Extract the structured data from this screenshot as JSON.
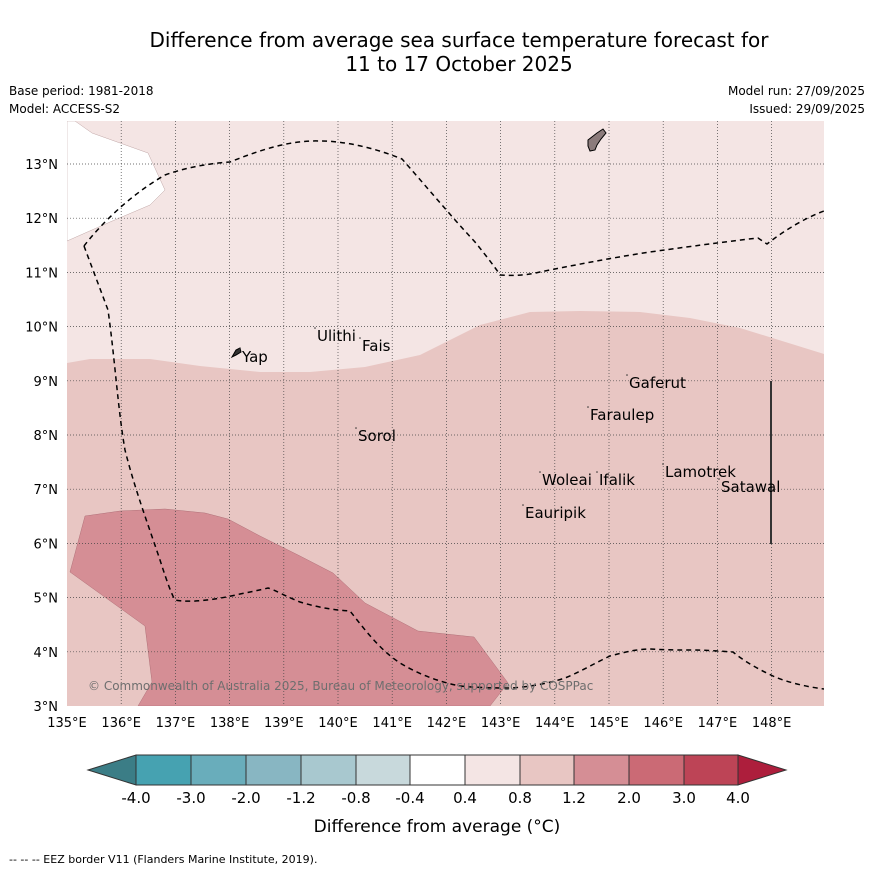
{
  "title": {
    "line1": "Difference from average sea surface temperature forecast for",
    "line2": "11 to 17 October 2025"
  },
  "meta": {
    "base_period": "Base period: 1981-2018",
    "model": "Model: ACCESS-S2",
    "model_run": "Model run: 27/09/2025",
    "issued": "Issued: 29/09/2025"
  },
  "axes": {
    "x_ticks": [
      "135°E",
      "136°E",
      "137°E",
      "138°E",
      "139°E",
      "140°E",
      "141°E",
      "142°E",
      "143°E",
      "144°E",
      "145°E",
      "146°E",
      "147°E",
      "148°E"
    ],
    "y_ticks": [
      "3°N",
      "4°N",
      "5°N",
      "6°N",
      "7°N",
      "8°N",
      "9°N",
      "10°N",
      "11°N",
      "12°N",
      "13°N"
    ]
  },
  "places": [
    {
      "name": "Yap"
    },
    {
      "name": "Ulithi"
    },
    {
      "name": "Fais"
    },
    {
      "name": "Sorol"
    },
    {
      "name": "Gaferut"
    },
    {
      "name": "Faraulep"
    },
    {
      "name": "Woleai"
    },
    {
      "name": "Ifalik"
    },
    {
      "name": "Lamotrek"
    },
    {
      "name": "Satawal"
    },
    {
      "name": "Eauripik"
    }
  ],
  "copyright": "© Commonwealth of Australia 2025, Bureau of Meteorology, supported by COSPPac",
  "colorbar": {
    "labels": [
      "-4.0",
      "-3.0",
      "-2.0",
      "-1.2",
      "-0.8",
      "-0.4",
      "0.4",
      "0.8",
      "1.2",
      "2.0",
      "3.0",
      "4.0"
    ],
    "colors": [
      "#3b7d86",
      "#46a2b1",
      "#69adbb",
      "#88b6c2",
      "#a8c8cf",
      "#c8d9dc",
      "#ffffff",
      "#f4e5e4",
      "#e8c6c3",
      "#d58e95",
      "#cb6a75",
      "#bd4456",
      "#ad1e3c"
    ],
    "label": "Difference from average (°C)"
  },
  "footer": "--  --  -- EEZ border V11 (Flanders Marine Institute, 2019).",
  "region_colors": {
    "light": "#f4e5e4",
    "mid": "#e8c6c3",
    "dark": "#d58e95",
    "land": "#8b7b7b"
  }
}
